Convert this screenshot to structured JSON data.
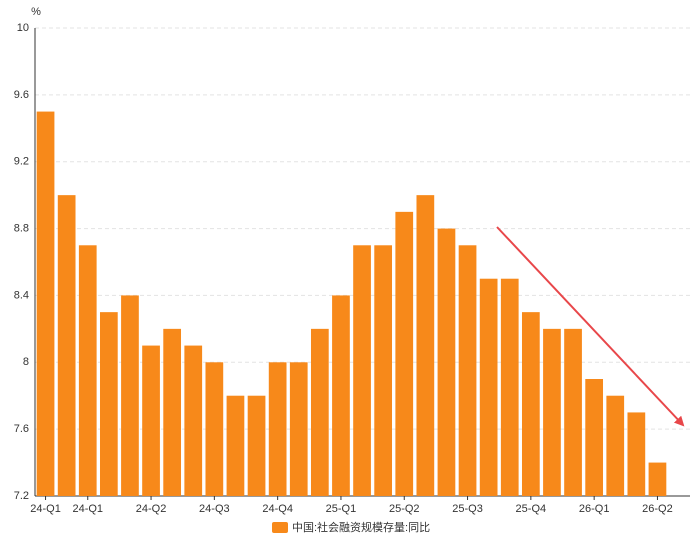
{
  "chart_data": {
    "type": "bar",
    "y_label": "%",
    "categories": [
      "24-Q1",
      null,
      "24-Q1",
      null,
      null,
      "24-Q2",
      null,
      null,
      "24-Q3",
      null,
      null,
      "24-Q4",
      null,
      null,
      "25-Q1",
      null,
      null,
      "25-Q2",
      null,
      null,
      "25-Q3",
      null,
      null,
      "25-Q4",
      null,
      null,
      "26-Q1",
      null,
      null,
      "26-Q2"
    ],
    "series": [
      {
        "name": "中国:社会融资规模存量:同比",
        "color": "#f7891a",
        "values": [
          9.5,
          9.0,
          8.7,
          8.3,
          8.4,
          8.1,
          8.2,
          8.1,
          8.0,
          7.8,
          7.8,
          8.0,
          8.0,
          8.2,
          8.4,
          8.7,
          8.7,
          8.9,
          9.0,
          8.8,
          8.7,
          8.5,
          8.5,
          8.3,
          8.2,
          8.2,
          7.9,
          7.8,
          7.7,
          7.4
        ]
      }
    ],
    "ylim": [
      7.2,
      10
    ],
    "yticks": [
      7.2,
      7.6,
      8,
      8.4,
      8.8,
      9.2,
      9.6,
      10
    ],
    "grid": true,
    "legend": "bottom"
  }
}
